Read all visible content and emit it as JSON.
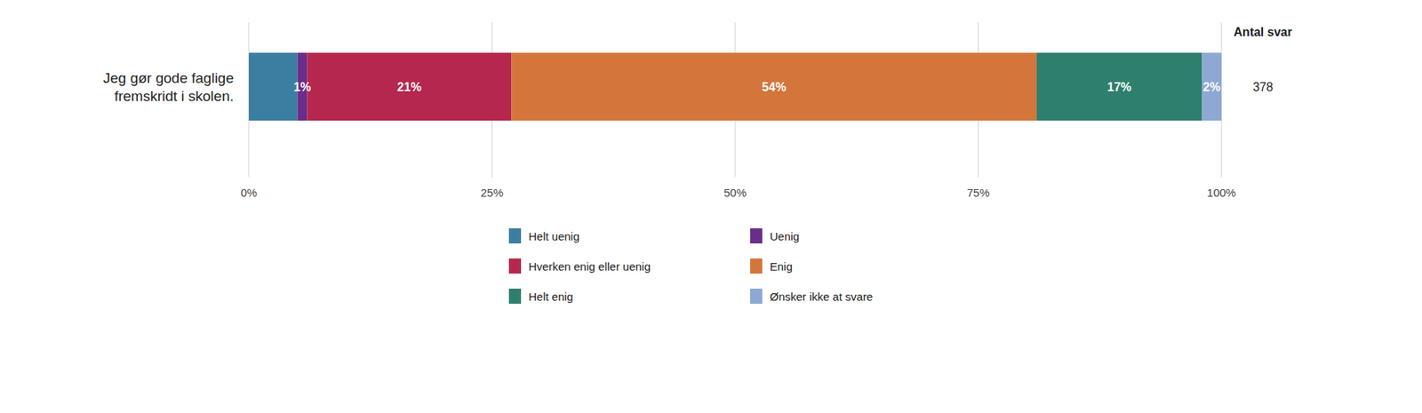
{
  "chart_data": {
    "type": "bar",
    "orientation": "horizontal",
    "stacked": true,
    "y_label": "Jeg gør gode faglige\nfremskridt i skolen.",
    "annotations": [
      "Antal svar",
      "378"
    ],
    "series": [
      {
        "name": "Helt uenig",
        "color": "#3b7ea1",
        "values": [
          5
        ]
      },
      {
        "name": "Uenig",
        "color": "#6b2d8b",
        "values": [
          1
        ],
        "value_labels": [
          "1%"
        ]
      },
      {
        "name": "Hverken enig eller uenig",
        "color": "#b5274e",
        "values": [
          21
        ],
        "value_labels": [
          "21%"
        ]
      },
      {
        "name": "Enig",
        "color": "#d4763b",
        "values": [
          54
        ],
        "value_labels": [
          "54%"
        ]
      },
      {
        "name": "Helt enig",
        "color": "#2e7f6e",
        "values": [
          17
        ],
        "value_labels": [
          "17%"
        ]
      },
      {
        "name": "Ønsker ikke at svare",
        "color": "#8da8d4",
        "values": [
          2
        ],
        "value_labels": [
          "2%"
        ]
      }
    ],
    "xlim": [
      0,
      100
    ],
    "xticks": [
      {
        "value": 0,
        "label": "0%"
      },
      {
        "value": 25,
        "label": "25%"
      },
      {
        "value": 50,
        "label": "50%"
      },
      {
        "value": 75,
        "label": "75%"
      },
      {
        "value": 100,
        "label": "100%"
      }
    ],
    "grid": true,
    "data_labels": true,
    "legend": "bottom"
  }
}
